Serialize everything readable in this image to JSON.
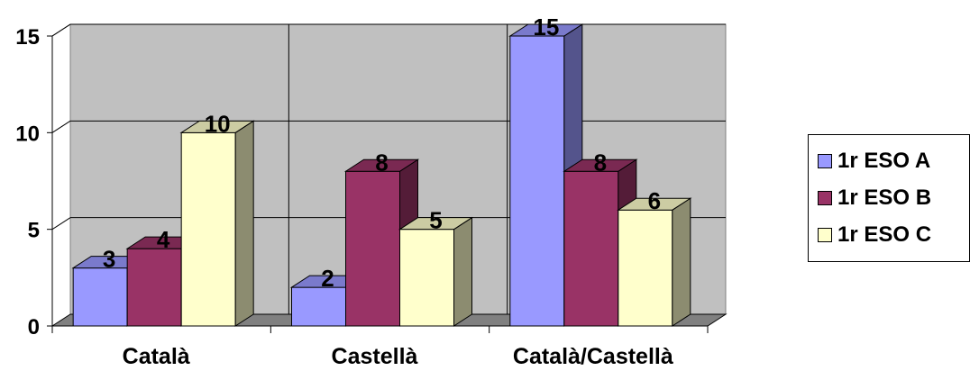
{
  "chart_data": {
    "type": "bar",
    "style": "3d-clustered-column",
    "categories": [
      "Català",
      "Castellà",
      "Català/Castellà"
    ],
    "series": [
      {
        "name": "1r ESO A",
        "values": [
          3,
          2,
          15
        ],
        "color": "#9999FF"
      },
      {
        "name": "1r ESO B",
        "values": [
          4,
          8,
          8
        ],
        "color": "#993366"
      },
      {
        "name": "1r ESO C",
        "values": [
          10,
          5,
          6
        ],
        "color": "#FFFFCC"
      }
    ],
    "ylim": [
      0,
      15
    ],
    "yticks": [
      0,
      5,
      10,
      15
    ],
    "grid": true,
    "wall_color": "#C0C0C0",
    "data_labels": true,
    "legend_position": "right"
  }
}
